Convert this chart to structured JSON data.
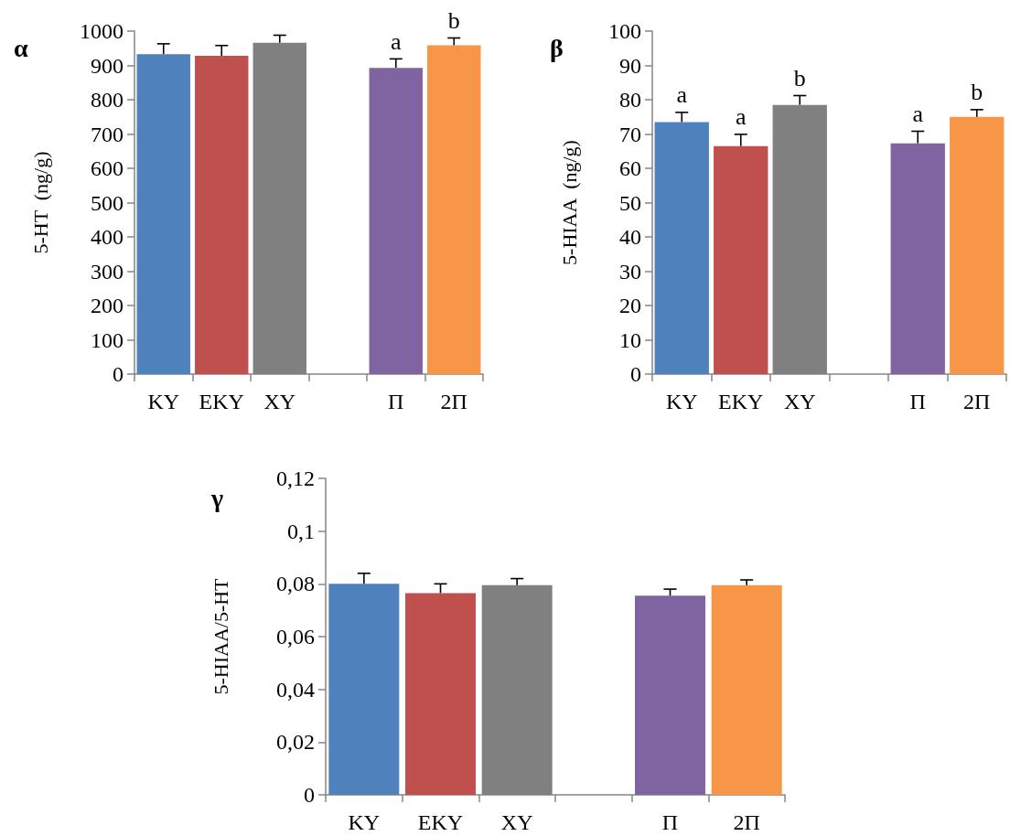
{
  "chart_data": [
    {
      "type": "bar",
      "title": "α",
      "ylabel": "5-HT  (ng/g)",
      "categories": [
        "ΚΥ",
        "ΕΚΥ",
        "ΧΥ",
        null,
        "Π",
        "2Π"
      ],
      "values": [
        933,
        928,
        966,
        null,
        893,
        959
      ],
      "colors": [
        "#4f81bd",
        "#c0504d",
        "#808080",
        null,
        "#8064a2",
        "#f79646"
      ],
      "errors": [
        [
          933,
          963
        ],
        [
          928,
          958
        ],
        [
          966,
          988
        ],
        null,
        [
          893,
          919
        ],
        [
          959,
          980
        ]
      ],
      "ylim": [
        0,
        1000
      ],
      "yticks": [
        0,
        100,
        200,
        300,
        400,
        500,
        600,
        700,
        800,
        900,
        1000
      ],
      "annotations": [
        {
          "text": "a",
          "x": "Π",
          "y": 893
        },
        {
          "text": "b",
          "x": "2Π",
          "y": 959
        }
      ]
    },
    {
      "type": "bar",
      "title": "β",
      "ylabel": "5-HIAA  (ng/g)",
      "categories": [
        "ΚΥ",
        "ΕΚΥ",
        "ΧΥ",
        null,
        "Π",
        "2Π"
      ],
      "values": [
        73.5,
        66.5,
        78.5,
        null,
        67.3,
        75
      ],
      "colors": [
        "#4f81bd",
        "#c0504d",
        "#808080",
        null,
        "#8064a2",
        "#f79646"
      ],
      "errors": [
        [
          73.5,
          76.3
        ],
        [
          66.5,
          69.9
        ],
        [
          78.5,
          81.2
        ],
        null,
        [
          67.3,
          70.8
        ],
        [
          75,
          77.1
        ]
      ],
      "ylim": [
        0,
        100
      ],
      "yticks": [
        0,
        10,
        20,
        30,
        40,
        50,
        60,
        70,
        80,
        90,
        100
      ],
      "annotations": [
        {
          "text": "a",
          "x": "ΚΥ",
          "y": 73.5
        },
        {
          "text": "a",
          "x": "ΕΚΥ",
          "y": 66.5
        },
        {
          "text": "b",
          "x": "ΧΥ",
          "y": 78.5
        },
        {
          "text": "a",
          "x": "Π",
          "y": 67.3
        },
        {
          "text": "b",
          "x": "2Π",
          "y": 75
        }
      ]
    },
    {
      "type": "bar",
      "title": "γ",
      "ylabel": "5-HIAA/5-HT",
      "categories": [
        "ΚΥ",
        "ΕΚΥ",
        "ΧΥ",
        null,
        "Π",
        "2Π"
      ],
      "values": [
        0.08,
        0.0765,
        0.0795,
        null,
        0.0755,
        0.0795
      ],
      "colors": [
        "#4f81bd",
        "#c0504d",
        "#808080",
        null,
        "#8064a2",
        "#f79646"
      ],
      "errors": [
        [
          0.08,
          0.084
        ],
        [
          0.0765,
          0.08
        ],
        [
          0.0795,
          0.082
        ],
        null,
        [
          0.0755,
          0.078
        ],
        [
          0.0795,
          0.0815
        ]
      ],
      "ylim": [
        0,
        0.12
      ],
      "yticks": [
        0,
        {
          "value": 0.02,
          "label": "0,02"
        },
        {
          "value": 0.04,
          "label": "0,04"
        },
        {
          "value": 0.06,
          "label": "0,06"
        },
        {
          "value": 0.08,
          "label": "0,08"
        },
        {
          "value": 0.1,
          "label": "0,1"
        },
        {
          "value": 0.12,
          "label": "0,12"
        }
      ]
    }
  ]
}
